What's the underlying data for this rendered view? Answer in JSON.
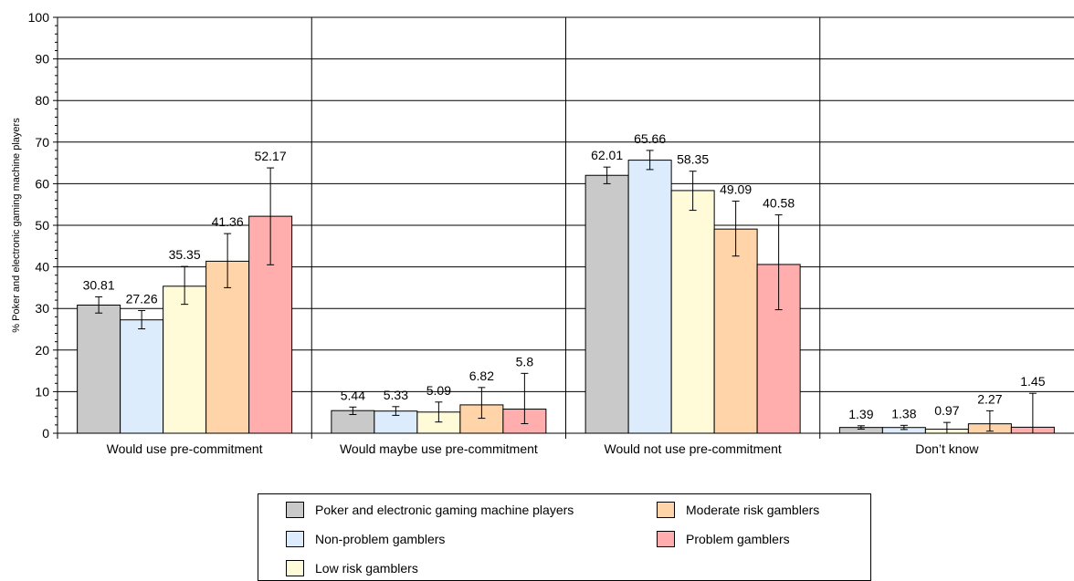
{
  "chart_data": {
    "type": "bar",
    "ylabel": "% Poker and electronic gaming machine players",
    "xlabel": "",
    "ylim": [
      0,
      100
    ],
    "yticks": [
      0,
      10,
      20,
      30,
      40,
      50,
      60,
      70,
      80,
      90,
      100
    ],
    "grid": true,
    "legend_position": "bottom",
    "categories": [
      "Would use pre-commitment",
      "Would maybe use pre-commitment",
      "Would not use pre-commitment",
      "Don’t know"
    ],
    "series": [
      {
        "name": "Poker and electronic gaming machine players",
        "color": "#c9c9c9",
        "values": [
          30.81,
          5.44,
          62.01,
          1.39
        ],
        "error_low": [
          28.9,
          4.5,
          60.0,
          1.0
        ],
        "error_high": [
          32.8,
          6.3,
          64.0,
          1.8
        ]
      },
      {
        "name": "Non-problem gamblers",
        "color": "#dcecfc",
        "values": [
          27.26,
          5.33,
          65.66,
          1.38
        ],
        "error_low": [
          25.1,
          4.3,
          63.4,
          0.9
        ],
        "error_high": [
          29.5,
          6.4,
          68.0,
          1.9
        ]
      },
      {
        "name": "Low risk gamblers",
        "color": "#fffbd8",
        "values": [
          35.35,
          5.09,
          58.35,
          0.97
        ],
        "error_low": [
          31.0,
          2.7,
          53.6,
          0.0
        ],
        "error_high": [
          40.1,
          7.5,
          63.0,
          2.6
        ]
      },
      {
        "name": "Moderate risk gamblers",
        "color": "#ffd4a8",
        "values": [
          41.36,
          6.82,
          49.09,
          2.27
        ],
        "error_low": [
          35.0,
          3.6,
          42.6,
          0.5
        ],
        "error_high": [
          48.0,
          11.0,
          55.8,
          5.4
        ]
      },
      {
        "name": "Problem gamblers",
        "color": "#ffadad",
        "values": [
          52.17,
          5.8,
          40.58,
          1.45
        ],
        "error_low": [
          40.5,
          2.3,
          29.7,
          0.0
        ],
        "error_high": [
          63.8,
          14.4,
          52.5,
          9.6
        ]
      }
    ]
  }
}
